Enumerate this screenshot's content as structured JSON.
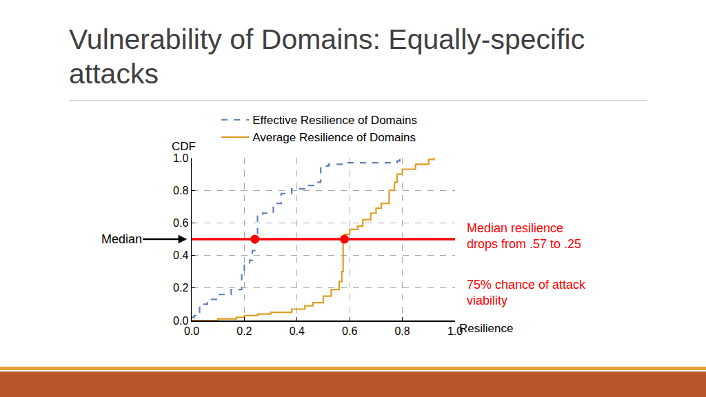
{
  "chart_data": {
    "type": "step",
    "title": "Vulnerability of Domains: Equally-specific attacks",
    "x_label": "Resilience",
    "y_label": "CDF",
    "xlim": [
      0,
      1
    ],
    "ylim": [
      0,
      1
    ],
    "xticks": [
      {
        "value": 0,
        "label": "0.0"
      },
      0.2,
      0.4,
      0.6,
      0.8,
      {
        "value": 1,
        "label": "1.0"
      }
    ],
    "yticks": [
      {
        "value": 0,
        "label": "0.0"
      },
      0.2,
      0.4,
      0.6,
      0.8,
      {
        "value": 1,
        "label": "1.0"
      }
    ],
    "grid": true,
    "legend": "top",
    "series": [
      {
        "name": "Effective Resilience of Domains",
        "color": "#5e81b5",
        "line_style": "dashed",
        "x": [
          0,
          0.01,
          0.02,
          0.03,
          0.06,
          0.1,
          0.15,
          0.19,
          0.2,
          0.22,
          0.23,
          0.24,
          0.25,
          0.27,
          0.31,
          0.34,
          0.38,
          0.43,
          0.48,
          0.49,
          0.52,
          0.58,
          0.78,
          0.79
        ],
        "values": [
          0.02,
          0.03,
          0.05,
          0.1,
          0.13,
          0.16,
          0.19,
          0.28,
          0.34,
          0.37,
          0.43,
          0.5,
          0.64,
          0.66,
          0.72,
          0.78,
          0.81,
          0.83,
          0.85,
          0.95,
          0.96,
          0.97,
          0.98,
          1.0
        ]
      },
      {
        "name": "Average Resilience of Domains",
        "color": "#e19c24",
        "line_style": "solid",
        "x": [
          0,
          0.1,
          0.17,
          0.2,
          0.25,
          0.3,
          0.38,
          0.43,
          0.46,
          0.5,
          0.53,
          0.56,
          0.57,
          0.575,
          0.58,
          0.6,
          0.63,
          0.65,
          0.68,
          0.7,
          0.72,
          0.75,
          0.77,
          0.78,
          0.8,
          0.85,
          0.9,
          0.92
        ],
        "values": [
          0,
          0.01,
          0.02,
          0.03,
          0.04,
          0.05,
          0.07,
          0.09,
          0.11,
          0.15,
          0.19,
          0.24,
          0.3,
          0.5,
          0.53,
          0.56,
          0.58,
          0.62,
          0.66,
          0.69,
          0.72,
          0.8,
          0.85,
          0.9,
          0.93,
          0.96,
          0.99,
          1.0
        ]
      }
    ],
    "median": {
      "label": "Median",
      "value": 0.5,
      "x": [
        0.24,
        0.58
      ],
      "color": "#ff0000"
    },
    "annotations": [
      {
        "text": "Median resilience\ndrops from .57 to .25",
        "color": "#ff0000"
      },
      {
        "text": "75% chance of attack\nviability",
        "color": "#ff0000"
      }
    ]
  }
}
